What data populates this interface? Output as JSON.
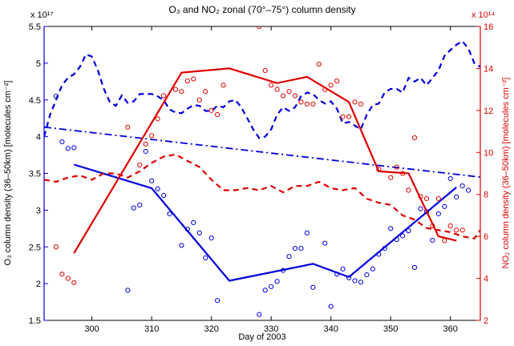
{
  "chart_data": {
    "type": "line",
    "title": "O₃ and NO₂ zonal (70°–75°) column density",
    "xlabel": "Day of 2003",
    "ylabel_left": "O₃ column density (36–50km) [molecules cm⁻²]",
    "ylabel_right": "NO₂ column density (36–50km) [molecules cm⁻²]",
    "left_exponent": "x 10¹⁷",
    "right_exponent": "x 10¹⁴",
    "xlim": [
      292,
      365
    ],
    "ylim_left": [
      1.5,
      5.5
    ],
    "ylim_right": [
      2,
      16
    ],
    "grid": false,
    "x_ticks": [
      300,
      310,
      320,
      330,
      340,
      350,
      360
    ],
    "left_ticks": [
      "1.5",
      "2",
      "2.5",
      "3",
      "3.5",
      "4",
      "4.5",
      "5",
      "5.5"
    ],
    "right_ticks": [
      "2",
      "4",
      "6",
      "8",
      "10",
      "12",
      "14",
      "16"
    ],
    "colors": {
      "o3": "#0000dd",
      "no2": "#dd0000"
    },
    "series": [
      {
        "axis": "left",
        "style": "markers",
        "color": "#0000dd",
        "points": [
          [
            294,
            4.55
          ],
          [
            295,
            3.93
          ],
          [
            296,
            3.84
          ],
          [
            297,
            3.85
          ],
          [
            306,
            1.91
          ],
          [
            307,
            3.03
          ],
          [
            308,
            3.07
          ],
          [
            309,
            3.8
          ],
          [
            310,
            3.4
          ],
          [
            311,
            3.29
          ],
          [
            312,
            3.2
          ],
          [
            313,
            2.95
          ],
          [
            315,
            2.52
          ],
          [
            316,
            2.74
          ],
          [
            317,
            2.83
          ],
          [
            318,
            2.69
          ],
          [
            319,
            2.35
          ],
          [
            320,
            2.62
          ],
          [
            321,
            1.77
          ],
          [
            328,
            1.58
          ],
          [
            329,
            1.91
          ],
          [
            330,
            1.96
          ],
          [
            331,
            2.03
          ],
          [
            332,
            2.18
          ],
          [
            333,
            2.37
          ],
          [
            334,
            2.48
          ],
          [
            335,
            2.48
          ],
          [
            336,
            2.69
          ],
          [
            337,
            1.95
          ],
          [
            339,
            2.55
          ],
          [
            340,
            1.69
          ],
          [
            341,
            2.13
          ],
          [
            342,
            2.2
          ],
          [
            343,
            2.08
          ],
          [
            344,
            2.04
          ],
          [
            345,
            2.02
          ],
          [
            346,
            2.12
          ],
          [
            347,
            2.2
          ],
          [
            348,
            2.4
          ],
          [
            349,
            2.48
          ],
          [
            350,
            2.75
          ],
          [
            351,
            2.6
          ],
          [
            352,
            2.65
          ],
          [
            353,
            2.72
          ],
          [
            354,
            2.22
          ],
          [
            355,
            3.02
          ],
          [
            356,
            2.98
          ],
          [
            357,
            2.59
          ],
          [
            358,
            2.95
          ],
          [
            359,
            3.05
          ],
          [
            360,
            3.43
          ],
          [
            361,
            3.18
          ],
          [
            362,
            3.33
          ],
          [
            363,
            3.27
          ]
        ]
      },
      {
        "axis": "left",
        "style": "solid",
        "color": "#0000dd",
        "points": [
          [
            297,
            3.62
          ],
          [
            310,
            3.3
          ],
          [
            323,
            2.04
          ],
          [
            337,
            2.27
          ],
          [
            343,
            2.09
          ],
          [
            361,
            3.31
          ]
        ]
      },
      {
        "axis": "left",
        "style": "dashed",
        "color": "#0000dd",
        "points": [
          [
            292,
            4.0
          ],
          [
            293,
            4.3
          ],
          [
            294,
            4.5
          ],
          [
            295,
            4.7
          ],
          [
            296,
            4.8
          ],
          [
            297,
            4.85
          ],
          [
            298,
            4.95
          ],
          [
            299,
            5.12
          ],
          [
            300,
            5.09
          ],
          [
            301,
            4.9
          ],
          [
            302,
            4.65
          ],
          [
            303,
            4.47
          ],
          [
            304,
            4.42
          ],
          [
            305,
            4.56
          ],
          [
            306,
            4.46
          ],
          [
            307,
            4.48
          ],
          [
            308,
            4.58
          ],
          [
            309,
            4.58
          ],
          [
            310,
            4.58
          ],
          [
            311,
            4.55
          ],
          [
            312,
            4.5
          ],
          [
            313,
            4.37
          ],
          [
            314,
            4.33
          ],
          [
            315,
            4.32
          ],
          [
            316,
            4.38
          ],
          [
            317,
            4.43
          ],
          [
            318,
            4.42
          ],
          [
            319,
            4.35
          ],
          [
            320,
            4.35
          ],
          [
            321,
            4.42
          ],
          [
            322,
            4.4
          ],
          [
            323,
            4.48
          ],
          [
            324,
            4.5
          ],
          [
            325,
            4.4
          ],
          [
            326,
            4.25
          ],
          [
            327,
            4.1
          ],
          [
            328,
            3.98
          ],
          [
            329,
            4.0
          ],
          [
            330,
            4.1
          ],
          [
            331,
            4.3
          ],
          [
            332,
            4.4
          ],
          [
            333,
            4.35
          ],
          [
            334,
            4.4
          ],
          [
            335,
            4.55
          ],
          [
            336,
            4.6
          ],
          [
            337,
            4.58
          ],
          [
            338,
            4.5
          ],
          [
            339,
            4.45
          ],
          [
            340,
            4.48
          ],
          [
            341,
            4.38
          ],
          [
            342,
            4.18
          ],
          [
            343,
            4.2
          ],
          [
            344,
            4.15
          ],
          [
            345,
            4.1
          ],
          [
            346,
            4.3
          ],
          [
            347,
            4.43
          ],
          [
            348,
            4.45
          ],
          [
            349,
            4.6
          ],
          [
            350,
            4.65
          ],
          [
            351,
            4.65
          ],
          [
            352,
            4.6
          ],
          [
            353,
            4.8
          ],
          [
            354,
            4.75
          ],
          [
            355,
            4.8
          ],
          [
            356,
            4.7
          ],
          [
            357,
            4.8
          ],
          [
            358,
            4.9
          ],
          [
            359,
            5.1
          ],
          [
            360,
            5.18
          ],
          [
            361,
            5.25
          ],
          [
            362,
            5.3
          ],
          [
            363,
            5.2
          ],
          [
            364,
            5.0
          ],
          [
            365,
            4.95
          ]
        ]
      },
      {
        "axis": "left",
        "style": "dashdot",
        "color": "#0000dd",
        "points": [
          [
            292,
            4.13
          ],
          [
            365,
            3.45
          ]
        ]
      },
      {
        "axis": "right",
        "style": "markers",
        "color": "#dd0000",
        "points": [
          [
            294,
            5.5
          ],
          [
            295,
            4.2
          ],
          [
            296,
            4.0
          ],
          [
            297,
            3.8
          ],
          [
            306,
            11.2
          ],
          [
            308,
            9.4
          ],
          [
            309,
            10.4
          ],
          [
            310,
            10.8
          ],
          [
            311,
            11.6
          ],
          [
            312,
            12.7
          ],
          [
            314,
            13.0
          ],
          [
            315,
            12.9
          ],
          [
            316,
            13.4
          ],
          [
            317,
            13.5
          ],
          [
            318,
            12.5
          ],
          [
            319,
            12.9
          ],
          [
            320,
            12.0
          ],
          [
            321,
            11.8
          ],
          [
            322,
            13.2
          ],
          [
            328,
            16.0
          ],
          [
            329,
            13.9
          ],
          [
            330,
            13.2
          ],
          [
            331,
            13.0
          ],
          [
            332,
            12.7
          ],
          [
            333,
            12.9
          ],
          [
            334,
            12.7
          ],
          [
            335,
            12.4
          ],
          [
            336,
            12.3
          ],
          [
            337,
            12.3
          ],
          [
            338,
            14.2
          ],
          [
            339,
            13.0
          ],
          [
            340,
            13.2
          ],
          [
            341,
            13.4
          ],
          [
            342,
            11.7
          ],
          [
            343,
            11.7
          ],
          [
            344,
            12.4
          ],
          [
            345,
            12.3
          ],
          [
            348,
            9.2
          ],
          [
            350,
            8.8
          ],
          [
            351,
            9.3
          ],
          [
            352,
            9.0
          ],
          [
            353,
            8.2
          ],
          [
            354,
            10.7
          ],
          [
            355,
            7.9
          ],
          [
            356,
            7.8
          ],
          [
            357,
            6.5
          ],
          [
            358,
            7.8
          ],
          [
            359,
            5.8
          ],
          [
            360,
            6.5
          ],
          [
            361,
            6.3
          ],
          [
            362,
            6.3
          ]
        ]
      },
      {
        "axis": "right",
        "style": "solid",
        "color": "#dd0000",
        "points": [
          [
            297,
            5.2
          ],
          [
            315,
            13.8
          ],
          [
            323,
            14.0
          ],
          [
            331,
            13.3
          ],
          [
            336,
            13.6
          ],
          [
            343,
            12.4
          ],
          [
            348,
            9.1
          ],
          [
            353,
            9.0
          ],
          [
            358,
            6.0
          ],
          [
            361,
            5.8
          ]
        ]
      },
      {
        "axis": "right",
        "style": "dashed",
        "color": "#dd0000",
        "points": [
          [
            292,
            8.7
          ],
          [
            294,
            8.6
          ],
          [
            296,
            8.8
          ],
          [
            298,
            8.9
          ],
          [
            300,
            8.7
          ],
          [
            302,
            9.0
          ],
          [
            304,
            9.0
          ],
          [
            306,
            8.8
          ],
          [
            308,
            9.1
          ],
          [
            310,
            9.5
          ],
          [
            312,
            9.8
          ],
          [
            314,
            9.9
          ],
          [
            316,
            9.6
          ],
          [
            318,
            9.3
          ],
          [
            320,
            8.7
          ],
          [
            322,
            8.2
          ],
          [
            324,
            8.2
          ],
          [
            326,
            8.3
          ],
          [
            328,
            8.2
          ],
          [
            330,
            8.4
          ],
          [
            332,
            8.1
          ],
          [
            334,
            8.4
          ],
          [
            336,
            8.4
          ],
          [
            338,
            8.6
          ],
          [
            340,
            8.3
          ],
          [
            342,
            8.2
          ],
          [
            344,
            8.3
          ],
          [
            346,
            7.8
          ],
          [
            348,
            7.6
          ],
          [
            350,
            7.5
          ],
          [
            352,
            7.0
          ],
          [
            354,
            6.8
          ],
          [
            356,
            6.4
          ],
          [
            358,
            6.3
          ],
          [
            360,
            6.2
          ],
          [
            362,
            6.0
          ],
          [
            364,
            5.9
          ],
          [
            365,
            6.3
          ]
        ]
      }
    ]
  }
}
